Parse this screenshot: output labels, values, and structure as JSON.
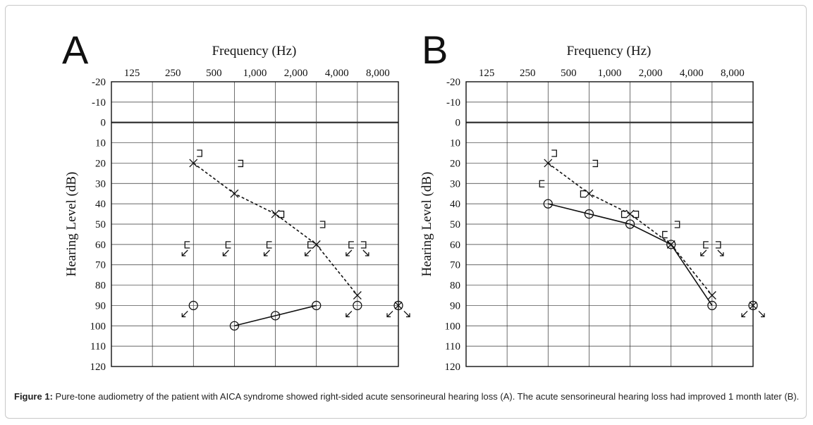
{
  "caption": {
    "label": "Figure 1:",
    "text": " Pure-tone audiometry of the patient with AICA syndrome showed right-sided acute sensorineural hearing loss (A). The acute sensorineural hearing loss had improved 1 month later (B)."
  },
  "chart_data": [
    {
      "type": "line",
      "panel_label": "A",
      "title": "Frequency (Hz)",
      "ylabel": "Hearing Level (dB)",
      "x_categories": [
        "125",
        "250",
        "500",
        "1,000",
        "2,000",
        "4,000",
        "8,000"
      ],
      "y_ticks": [
        -20,
        -10,
        0,
        10,
        20,
        30,
        40,
        50,
        60,
        70,
        80,
        90,
        100,
        110,
        120
      ],
      "ylim": [
        -20,
        120
      ],
      "y_inverted": true,
      "grid": true,
      "series": [
        {
          "symbol": "x",
          "line": "dashed",
          "x": [
            "250",
            "500",
            "1,000",
            "2,000",
            "4,000"
          ],
          "y": [
            20,
            35,
            45,
            60,
            85
          ]
        },
        {
          "symbol": "o",
          "line": "solid",
          "x": [
            "500",
            "1,000",
            "2,000"
          ],
          "y": [
            100,
            95,
            90
          ]
        },
        {
          "symbol": "o",
          "line": "none",
          "x": [
            "250",
            "4,000"
          ],
          "y": [
            90,
            90
          ]
        },
        {
          "symbol": "x-in-o",
          "line": "none",
          "x": [
            "8,000"
          ],
          "y": [
            90
          ]
        },
        {
          "symbol": "bracket-right",
          "line": "none",
          "x": [
            "250",
            "500",
            "1,000",
            "2,000"
          ],
          "y": [
            15,
            20,
            45,
            50
          ]
        },
        {
          "symbol": "bracket-left-noresponse",
          "line": "none",
          "x": [
            "250",
            "500",
            "1,000",
            "2,000",
            "4,000"
          ],
          "y": [
            60,
            60,
            60,
            60,
            60
          ]
        },
        {
          "symbol": "bracket-right-noresponse",
          "line": "none",
          "x": [
            "4,000"
          ],
          "y": [
            60
          ]
        },
        {
          "symbol": "noresponse-left",
          "line": "none",
          "x": [
            "250",
            "4,000",
            "8,000"
          ],
          "y": [
            90,
            90,
            90
          ]
        },
        {
          "symbol": "noresponse-right",
          "line": "none",
          "x": [
            "8,000"
          ],
          "y": [
            90
          ]
        }
      ]
    },
    {
      "type": "line",
      "panel_label": "B",
      "title": "Frequency (Hz)",
      "ylabel": "Hearing Level (dB)",
      "x_categories": [
        "125",
        "250",
        "500",
        "1,000",
        "2,000",
        "4,000",
        "8,000"
      ],
      "y_ticks": [
        -20,
        -10,
        0,
        10,
        20,
        30,
        40,
        50,
        60,
        70,
        80,
        90,
        100,
        110,
        120
      ],
      "ylim": [
        -20,
        120
      ],
      "y_inverted": true,
      "grid": true,
      "series": [
        {
          "symbol": "x",
          "line": "dashed",
          "x": [
            "250",
            "500",
            "1,000",
            "2,000",
            "4,000"
          ],
          "y": [
            20,
            35,
            45,
            60,
            85
          ]
        },
        {
          "symbol": "o",
          "line": "solid",
          "x": [
            "250",
            "500",
            "1,000",
            "2,000",
            "4,000"
          ],
          "y": [
            40,
            45,
            50,
            60,
            90
          ]
        },
        {
          "symbol": "x-in-o",
          "line": "none",
          "x": [
            "8,000"
          ],
          "y": [
            90
          ]
        },
        {
          "symbol": "bracket-right",
          "line": "none",
          "x": [
            "250",
            "500",
            "1,000",
            "2,000"
          ],
          "y": [
            15,
            20,
            45,
            50
          ]
        },
        {
          "symbol": "bracket-left",
          "line": "none",
          "x": [
            "250",
            "500",
            "1,000",
            "2,000"
          ],
          "y": [
            30,
            35,
            45,
            55
          ]
        },
        {
          "symbol": "bracket-left-noresponse",
          "line": "none",
          "x": [
            "4,000"
          ],
          "y": [
            60
          ]
        },
        {
          "symbol": "bracket-right-noresponse",
          "line": "none",
          "x": [
            "4,000"
          ],
          "y": [
            60
          ]
        },
        {
          "symbol": "noresponse-left",
          "line": "none",
          "x": [
            "8,000"
          ],
          "y": [
            90
          ]
        },
        {
          "symbol": "noresponse-right",
          "line": "none",
          "x": [
            "8,000"
          ],
          "y": [
            90
          ]
        }
      ]
    }
  ]
}
